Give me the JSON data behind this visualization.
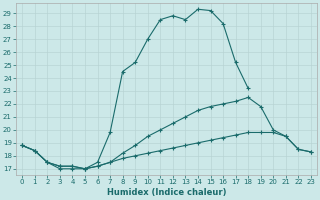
{
  "xlabel": "Humidex (Indice chaleur)",
  "bg_color": "#cce8e8",
  "line_color": "#1a6b6b",
  "xlim": [
    -0.5,
    23.5
  ],
  "ylim": [
    16.5,
    29.8
  ],
  "yticks": [
    17,
    18,
    19,
    20,
    21,
    22,
    23,
    24,
    25,
    26,
    27,
    28,
    29
  ],
  "xticks": [
    0,
    1,
    2,
    3,
    4,
    5,
    6,
    7,
    8,
    9,
    10,
    11,
    12,
    13,
    14,
    15,
    16,
    17,
    18,
    19,
    20,
    21,
    22,
    23
  ],
  "line1_x": [
    0,
    1,
    2,
    3,
    4,
    5,
    6,
    7,
    8,
    9,
    10,
    11,
    12,
    13,
    14,
    15,
    16,
    17,
    18
  ],
  "line1_y": [
    18.8,
    18.4,
    17.5,
    17.0,
    17.0,
    17.0,
    17.5,
    19.8,
    24.5,
    25.2,
    27.0,
    28.5,
    28.8,
    28.5,
    29.3,
    29.2,
    28.2,
    25.2,
    23.2
  ],
  "line2_x": [
    0,
    1,
    2,
    3,
    4,
    5,
    6,
    7,
    8,
    9,
    10,
    11,
    12,
    13,
    14,
    15,
    16,
    17,
    18,
    19,
    20,
    21,
    22,
    23
  ],
  "line2_y": [
    18.8,
    18.4,
    17.5,
    17.2,
    17.2,
    17.0,
    17.2,
    17.5,
    18.2,
    18.8,
    19.5,
    20.0,
    20.5,
    21.0,
    21.5,
    21.8,
    22.0,
    22.2,
    22.5,
    21.8,
    20.0,
    19.5,
    18.5,
    18.3
  ],
  "line3_x": [
    0,
    1,
    2,
    3,
    4,
    5,
    6,
    7,
    8,
    9,
    10,
    11,
    12,
    13,
    14,
    15,
    16,
    17,
    18,
    19,
    20,
    21,
    22,
    23
  ],
  "line3_y": [
    18.8,
    18.4,
    17.5,
    17.2,
    17.2,
    17.0,
    17.2,
    17.5,
    17.8,
    18.0,
    18.2,
    18.4,
    18.6,
    18.8,
    19.0,
    19.2,
    19.4,
    19.6,
    19.8,
    19.8,
    19.8,
    19.5,
    18.5,
    18.3
  ]
}
